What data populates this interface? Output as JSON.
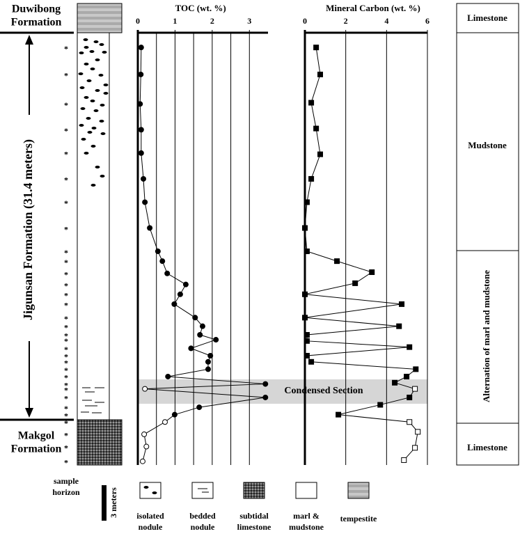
{
  "formations": {
    "top": [
      "Duwibong",
      "Formation"
    ],
    "middle": "Jigunsan Formation (31.4 meters)",
    "bottom": [
      "Makgol",
      "Formation"
    ]
  },
  "lithology_units": [
    "Limestone",
    "Mudstone",
    "Alternation of marl and mudstone",
    "Limestone"
  ],
  "condensed_section": "Condensed Section",
  "sample_marker": "*",
  "legend": {
    "sample_horizon": [
      "sample",
      "horizon"
    ],
    "scale": "3 meters",
    "items": [
      [
        "isolated",
        "nodule"
      ],
      [
        "bedded",
        "nodule"
      ],
      [
        "subtidal",
        "limestone"
      ],
      [
        "marl &",
        "mudstone"
      ],
      [
        "tempestite"
      ]
    ]
  },
  "chart_data": [
    {
      "type": "line",
      "title": "TOC (wt. %)",
      "xlim": [
        0,
        3.5
      ],
      "xticks": [
        0,
        1,
        2,
        3
      ],
      "minor_xticks": [
        0.5,
        1.5,
        2.5
      ],
      "ylim": [
        0,
        35.2
      ],
      "marker": "circle",
      "color": "#000000",
      "y": [
        1.2,
        3.4,
        5.8,
        7.9,
        9.8,
        11.9,
        13.8,
        15.9,
        17.8,
        18.6,
        19.6,
        20.5,
        21.3,
        22.1,
        23.2,
        23.9,
        24.6,
        25.0,
        25.7,
        26.3,
        26.8,
        27.4,
        28.0,
        28.6,
        29.0,
        29.7,
        30.5,
        31.1,
        31.7,
        32.7,
        33.7,
        34.9
      ],
      "values": [
        0.09,
        0.08,
        0.06,
        0.09,
        0.09,
        0.15,
        0.19,
        0.32,
        0.54,
        0.66,
        0.79,
        1.29,
        1.14,
        0.98,
        1.54,
        1.74,
        1.67,
        2.1,
        1.43,
        1.95,
        1.89,
        1.89,
        0.81,
        3.43,
        0.19,
        3.43,
        1.65,
        0.99,
        0.73,
        0.17,
        0.23,
        0.13
      ],
      "hollow": [
        false,
        false,
        false,
        false,
        false,
        false,
        false,
        false,
        false,
        false,
        false,
        false,
        false,
        false,
        false,
        false,
        false,
        false,
        false,
        false,
        false,
        false,
        false,
        false,
        true,
        false,
        false,
        false,
        true,
        true,
        true,
        true
      ]
    },
    {
      "type": "line",
      "title": "Mineral Carbon (wt. %)",
      "xlim": [
        0,
        6
      ],
      "xticks": [
        0,
        2,
        4,
        6
      ],
      "minor_xticks": [],
      "ylim": [
        0,
        35.2
      ],
      "marker": "square",
      "color": "#000000",
      "y": [
        1.2,
        3.4,
        5.7,
        7.8,
        9.9,
        11.9,
        13.8,
        15.9,
        17.8,
        18.6,
        19.5,
        20.4,
        21.3,
        22.1,
        23.2,
        23.9,
        24.6,
        25.1,
        25.6,
        26.3,
        26.8,
        27.4,
        28.0,
        28.5,
        29.0,
        29.7,
        30.3,
        31.1,
        31.7,
        32.5,
        33.8,
        34.8
      ],
      "values": [
        0.55,
        0.75,
        0.31,
        0.55,
        0.75,
        0.31,
        0.1,
        0,
        0.1,
        1.57,
        3.28,
        2.46,
        0,
        4.74,
        0,
        4.61,
        0.1,
        0.1,
        5.12,
        0.1,
        0.31,
        5.43,
        4.98,
        4.4,
        5.39,
        5.12,
        3.69,
        1.64,
        5.12,
        5.53,
        5.39,
        4.85
      ],
      "hollow": [
        false,
        false,
        false,
        false,
        false,
        false,
        false,
        false,
        false,
        false,
        false,
        false,
        false,
        false,
        false,
        false,
        false,
        false,
        false,
        false,
        false,
        false,
        false,
        false,
        true,
        false,
        false,
        false,
        true,
        true,
        true,
        true
      ]
    }
  ]
}
